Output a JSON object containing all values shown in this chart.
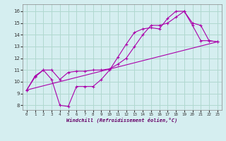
{
  "xlabel": "Windchill (Refroidissement éolien,°C)",
  "x_ticks": [
    0,
    1,
    2,
    3,
    4,
    5,
    6,
    7,
    8,
    9,
    10,
    11,
    12,
    13,
    14,
    15,
    16,
    17,
    18,
    19,
    20,
    21,
    22,
    23
  ],
  "y_ticks": [
    8,
    9,
    10,
    11,
    12,
    13,
    14,
    15,
    16
  ],
  "ylim": [
    7.6,
    16.6
  ],
  "xlim": [
    -0.5,
    23.5
  ],
  "bg_color": "#d5eef0",
  "grid_color": "#b0d8d0",
  "line_color": "#aa00aa",
  "line1_x": [
    0,
    1,
    2,
    3,
    4,
    5,
    6,
    7,
    8,
    9,
    10,
    11,
    12,
    13,
    14,
    15,
    16,
    17,
    18,
    19,
    20,
    21,
    22,
    23
  ],
  "line1_y": [
    9.3,
    10.5,
    11.0,
    10.2,
    8.0,
    7.9,
    9.6,
    9.6,
    9.6,
    10.2,
    11.0,
    12.1,
    13.2,
    14.2,
    14.5,
    14.6,
    14.5,
    15.4,
    16.0,
    16.0,
    15.0,
    14.8,
    13.5,
    13.4
  ],
  "line2_x": [
    0,
    1,
    2,
    3,
    4,
    5,
    6,
    7,
    8,
    9,
    10,
    11,
    12,
    13,
    14,
    15,
    16,
    17,
    18,
    19,
    20,
    21,
    22,
    23
  ],
  "line2_y": [
    9.3,
    10.4,
    11.0,
    11.0,
    10.2,
    10.8,
    10.9,
    10.9,
    11.0,
    11.0,
    11.1,
    11.5,
    12.0,
    13.0,
    14.0,
    14.8,
    14.8,
    15.0,
    15.5,
    16.0,
    14.8,
    13.5,
    13.5,
    13.4
  ],
  "line3_x": [
    0,
    23
  ],
  "line3_y": [
    9.3,
    13.4
  ]
}
